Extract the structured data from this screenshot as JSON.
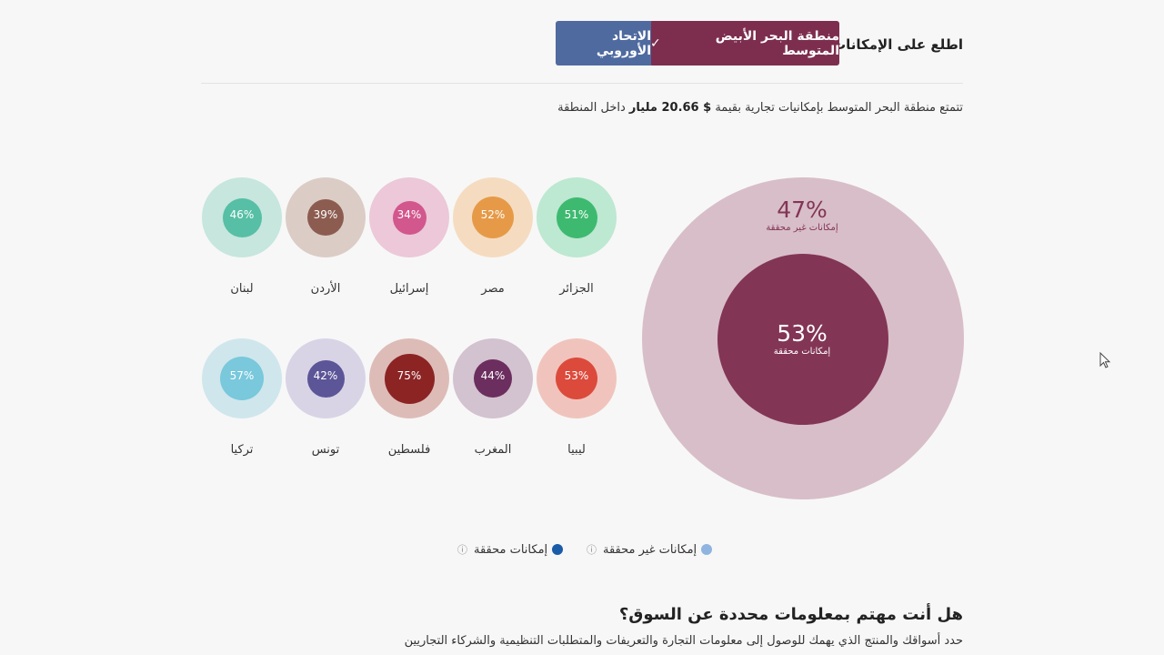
{
  "header": {
    "label": "اطلع على الإمكانات في",
    "options": [
      {
        "label": "منطقة البحر الأبيض المتوسط",
        "check": "✓",
        "selected": true,
        "color": "#7d2e4f"
      },
      {
        "label": "الاتحاد الأوروبي",
        "selected": false,
        "color": "#4f6a9f"
      }
    ]
  },
  "summary": {
    "prefix": "تتمتع منطقة البحر المتوسط بإمكانيات تجارية بقيمة",
    "value": "$ 20.66 مليار",
    "suffix": "داخل المنطقة"
  },
  "overall": {
    "unrealized_pct": "47%",
    "unrealized_label": "إمكانات غير محققة",
    "realized_pct": "53%",
    "realized_label": "إمكانات محققة",
    "realized_fraction": 0.53
  },
  "countries": [
    {
      "name": "الجزائر",
      "pct": "51%",
      "value": 0.51,
      "outer": "#bde8d1",
      "inner": "#3dba70"
    },
    {
      "name": "مصر",
      "pct": "52%",
      "value": 0.52,
      "outer": "#f5dcc0",
      "inner": "#e69a48"
    },
    {
      "name": "إسرائيل",
      "pct": "34%",
      "value": 0.34,
      "outer": "#ecc8d8",
      "inner": "#d2578d"
    },
    {
      "name": "الأردن",
      "pct": "39%",
      "value": 0.39,
      "outer": "#dcccc6",
      "inner": "#8c5c50"
    },
    {
      "name": "لبنان",
      "pct": "46%",
      "value": 0.46,
      "outer": "#c6e6de",
      "inner": "#56bfa5"
    },
    {
      "name": "ليبيا",
      "pct": "53%",
      "value": 0.53,
      "outer": "#f0c4bd",
      "inner": "#dc4a3c"
    },
    {
      "name": "المغرب",
      "pct": "44%",
      "value": 0.44,
      "outer": "#d3c2cf",
      "inner": "#6b2e5e"
    },
    {
      "name": "فلسطين",
      "pct": "75%",
      "value": 0.75,
      "outer": "#ddbcb8",
      "inner": "#8c2424"
    },
    {
      "name": "تونس",
      "pct": "42%",
      "value": 0.42,
      "outer": "#d8d4e6",
      "inner": "#5c5597"
    },
    {
      "name": "تركيا",
      "pct": "57%",
      "value": 0.57,
      "outer": "#cfe6ec",
      "inner": "#79c8dc"
    }
  ],
  "legend": {
    "unrealized": {
      "label": "إمكانات غير محققة",
      "color": "#8fb4e0",
      "icon": "info-icon"
    },
    "realized": {
      "label": "إمكانات محققة",
      "color": "#1a5ca8",
      "icon": "info-icon"
    },
    "info_glyph": "ⓘ"
  },
  "bottom": {
    "title": "هل أنت مهتم بمعلومات محددة عن السوق؟",
    "description": "حدد أسواقك والمنتج الذي يهمك للوصول إلى معلومات التجارة والتعريفات والمتطلبات التنظيمية والشركاء التجاريين"
  }
}
